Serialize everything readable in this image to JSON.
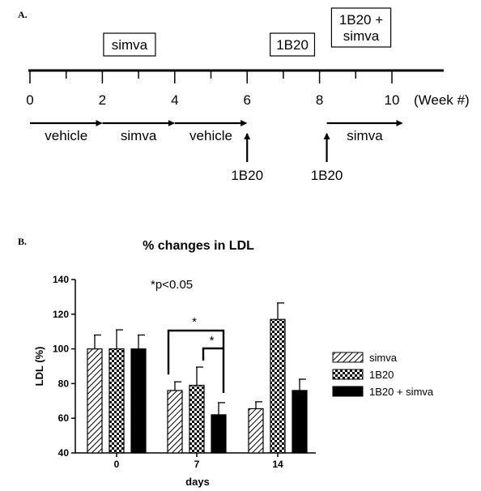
{
  "panel_a": {
    "label": "A.",
    "week_ticks": [
      "0",
      "2",
      "4",
      "6",
      "8",
      "10"
    ],
    "week_unit": "(Week #)",
    "boxes": [
      {
        "lines": [
          "simva"
        ],
        "week": 2.75
      },
      {
        "lines": [
          "1B20"
        ],
        "week": 7.25
      },
      {
        "lines": [
          "1B20 +",
          "simva"
        ],
        "week": 9.15
      }
    ],
    "periods": [
      {
        "label": "vehicle",
        "from": 0,
        "to": 2
      },
      {
        "label": "simva",
        "from": 2,
        "to": 4
      },
      {
        "label": "vehicle",
        "from": 4,
        "to": 6
      },
      {
        "label": "simva",
        "from": 8.2,
        "to": 10.3
      }
    ],
    "injections": [
      {
        "label": "1B20",
        "week": 6
      },
      {
        "label": "1B20",
        "week": 8.2
      }
    ]
  },
  "panel_b": {
    "label": "B.",
    "significance_note": "*p<0.05",
    "star": "*"
  },
  "chart_data": {
    "type": "bar",
    "title": "% changes in LDL",
    "xlabel": "days",
    "ylabel": "LDL (%)",
    "categories": [
      "0",
      "7",
      "14"
    ],
    "ylim": [
      40,
      140
    ],
    "yticks": [
      40,
      60,
      80,
      100,
      120,
      140
    ],
    "series": [
      {
        "name": "simva",
        "values": [
          100,
          76,
          65.5
        ],
        "errors": [
          8,
          5,
          4
        ],
        "pattern": "hatch"
      },
      {
        "name": "1B20",
        "values": [
          100,
          79,
          117
        ],
        "errors": [
          11,
          10.5,
          9.5
        ],
        "pattern": "checker"
      },
      {
        "name": "1B20 + simva",
        "values": [
          100,
          62,
          76
        ],
        "errors": [
          8,
          7,
          6.5
        ],
        "pattern": "solid"
      }
    ],
    "significance": [
      {
        "category": "7",
        "from_series": 0,
        "to_series": 2,
        "label": "*"
      },
      {
        "category": "7",
        "from_series": 1,
        "to_series": 2,
        "label": "*"
      }
    ],
    "legend_position": "right"
  }
}
